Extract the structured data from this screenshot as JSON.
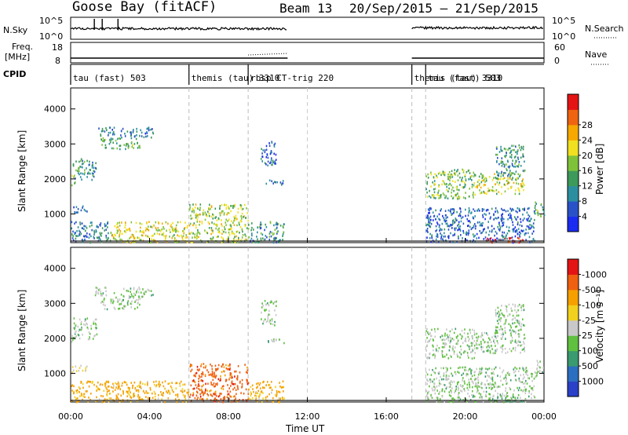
{
  "header": {
    "radar": "Goose Bay (fitACF)",
    "beam": "Beam 13",
    "dates": "20/Sep/2015 – 21/Sep/2015"
  },
  "nsky_panel": {
    "left_label": "N.Sky",
    "right_label": "N.Search",
    "left_ticks": [
      "10^5",
      "10^0"
    ],
    "right_ticks": [
      "10^5",
      "10^0"
    ]
  },
  "freq_panel": {
    "left_label_1": "Freq.",
    "left_label_2": "[MHz]",
    "right_label": "Nave",
    "left_ticks": [
      "18",
      "8"
    ],
    "right_ticks": [
      "60",
      "0"
    ]
  },
  "cpid": {
    "label": "CPID",
    "modes": [
      {
        "label": "tau (fast) 503",
        "start_hour": 0
      },
      {
        "label": "themis (tau) 3310",
        "start_hour": 6
      },
      {
        "label": "rbsp CT-trig 220",
        "start_hour": 9
      },
      {
        "label": "themis (tau) 3310",
        "start_hour": 17.3
      },
      {
        "label": "tau (fast) 503",
        "start_hour": 18
      }
    ]
  },
  "colorbars": {
    "power": {
      "label": "Power [dB]",
      "ticks": [
        "4",
        "8",
        "12",
        "16",
        "20",
        "24",
        "28"
      ],
      "colors": [
        "#1a2cf0",
        "#2a52c8",
        "#2c8fa0",
        "#3d9a5a",
        "#7fc23a",
        "#f0e020",
        "#f6a800",
        "#ef6410",
        "#e41414"
      ]
    },
    "velocity": {
      "label": "Velocity [m s⁻¹]",
      "ticks": [
        "1000",
        "500",
        "100",
        "25",
        "-25",
        "-100",
        "-500",
        "-1000"
      ],
      "colors": [
        "#2a40c8",
        "#2c6ec0",
        "#3a9a70",
        "#60c040",
        "#c8c8c8",
        "#f2d020",
        "#f5a000",
        "#ef6010",
        "#e41414"
      ]
    }
  },
  "x_axis": {
    "label": "Time UT",
    "ticks": [
      "00:00",
      "04:00",
      "08:00",
      "12:00",
      "16:00",
      "20:00",
      "00:00"
    ]
  },
  "chart_data": {
    "type": "heatmap",
    "x_range_hours": [
      0,
      24
    ],
    "y_label": "Slant Range [km]",
    "y_ticks": [
      1000,
      2000,
      3000,
      4000
    ],
    "y_range_km": [
      180,
      4600
    ],
    "grid": "dashed verticals at mode changes",
    "regions": [
      {
        "t": [
          0.0,
          0.2
        ],
        "r": [
          1800,
          2200
        ],
        "p": 14,
        "v": 25
      },
      {
        "t": [
          0.1,
          1.3
        ],
        "r": [
          2000,
          2600
        ],
        "p": 10,
        "v": 25
      },
      {
        "t": [
          1.2,
          2.2
        ],
        "r": [
          3250,
          3500
        ],
        "p": 8,
        "v": 25
      },
      {
        "t": [
          1.5,
          3.5
        ],
        "r": [
          2850,
          3200
        ],
        "p": 12,
        "v": 25
      },
      {
        "t": [
          2.5,
          4.2
        ],
        "r": [
          3200,
          3500
        ],
        "p": 8,
        "v": 25
      },
      {
        "t": [
          0.0,
          0.8
        ],
        "r": [
          1050,
          1250
        ],
        "p": 6,
        "v": -25
      },
      {
        "t": [
          0.0,
          2.0
        ],
        "r": [
          200,
          800
        ],
        "p": 8,
        "v": -100
      },
      {
        "t": [
          2.0,
          6.0
        ],
        "r": [
          200,
          800
        ],
        "p": 18,
        "v": -100
      },
      {
        "t": [
          6.0,
          9.0
        ],
        "r": [
          200,
          1300
        ],
        "p": 16,
        "v": -500
      },
      {
        "t": [
          9.0,
          10.8
        ],
        "r": [
          200,
          800
        ],
        "p": 10,
        "v": -100
      },
      {
        "t": [
          9.8,
          10.8
        ],
        "r": [
          1850,
          2000
        ],
        "p": 8,
        "v": 25
      },
      {
        "t": [
          9.6,
          10.4
        ],
        "r": [
          2400,
          3100
        ],
        "p": 6,
        "v": 25
      },
      {
        "t": [
          18.0,
          20.5
        ],
        "r": [
          1450,
          2300
        ],
        "p": 14,
        "v": 25
      },
      {
        "t": [
          20.5,
          23.0
        ],
        "r": [
          1600,
          2200
        ],
        "p": 16,
        "v": 25
      },
      {
        "t": [
          21.5,
          23.0
        ],
        "r": [
          2100,
          3000
        ],
        "p": 10,
        "v": 25
      },
      {
        "t": [
          18.0,
          23.5
        ],
        "r": [
          200,
          1200
        ],
        "p": 6,
        "v": 25
      },
      {
        "t": [
          21.0,
          23.0
        ],
        "r": [
          200,
          350
        ],
        "p": 28,
        "v": 100
      },
      {
        "t": [
          23.5,
          24.0
        ],
        "r": [
          900,
          1400
        ],
        "p": 12,
        "v": 25
      }
    ]
  }
}
